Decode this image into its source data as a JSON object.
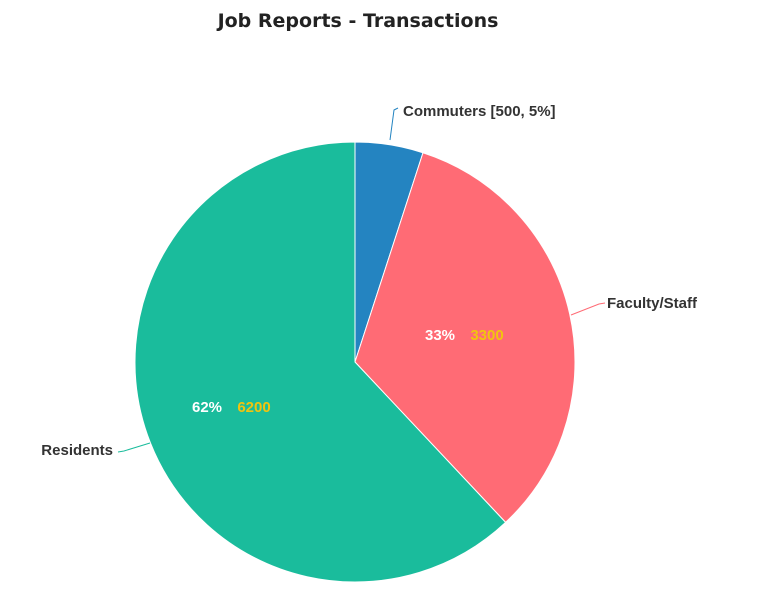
{
  "chart_data": {
    "type": "pie",
    "title": "Job Reports - Transactions",
    "slices": [
      {
        "name": "Commuters",
        "value": 500,
        "percent": 5,
        "color": "#2484c1",
        "label": "Commuters [500, 5%]",
        "inner_pct": "",
        "inner_val": ""
      },
      {
        "name": "Faculty/Staff",
        "value": 3300,
        "percent": 33,
        "color": "#ff6b75",
        "label": "Faculty/Staff",
        "inner_pct": "33%",
        "inner_val": "3300"
      },
      {
        "name": "Residents",
        "value": 6200,
        "percent": 62,
        "color": "#1abc9c",
        "label": "Residents",
        "inner_pct": "62%",
        "inner_val": "6200"
      }
    ],
    "inner_value_color": "#f1c40f",
    "start_angle": "12 o'clock",
    "direction": "clockwise"
  }
}
